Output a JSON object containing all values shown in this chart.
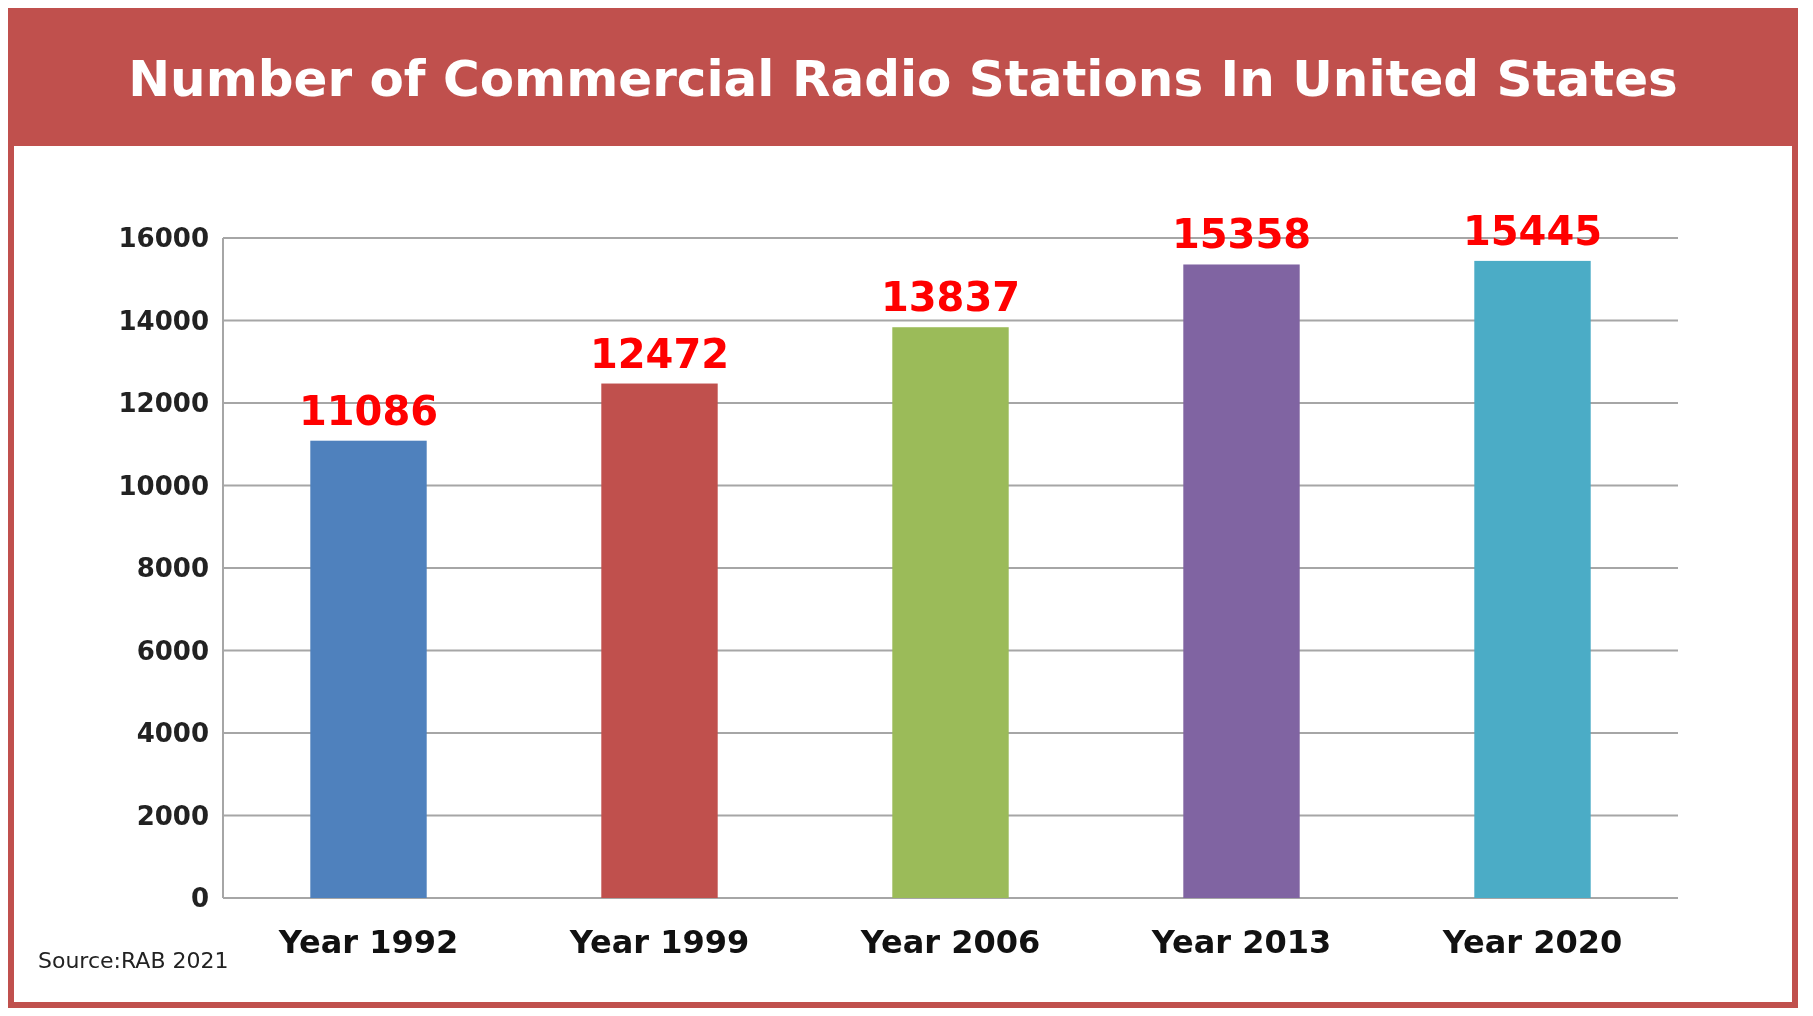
{
  "chart_data": {
    "type": "bar",
    "title": "Number of Commercial Radio Stations In United States",
    "categories": [
      "Year 1992",
      "Year 1999",
      "Year 2006",
      "Year 2013",
      "Year 2020"
    ],
    "values": [
      11086,
      12472,
      13837,
      15358,
      15445
    ],
    "colors": [
      "#4f81bd",
      "#c0504d",
      "#9bbb59",
      "#8064a2",
      "#4bacc6"
    ],
    "ylim": [
      0,
      16000
    ],
    "yticks": [
      0,
      2000,
      4000,
      6000,
      8000,
      10000,
      12000,
      14000,
      16000
    ],
    "grid": "y",
    "data_labels": true,
    "annotations": [
      "Source:RAB 2021"
    ]
  }
}
